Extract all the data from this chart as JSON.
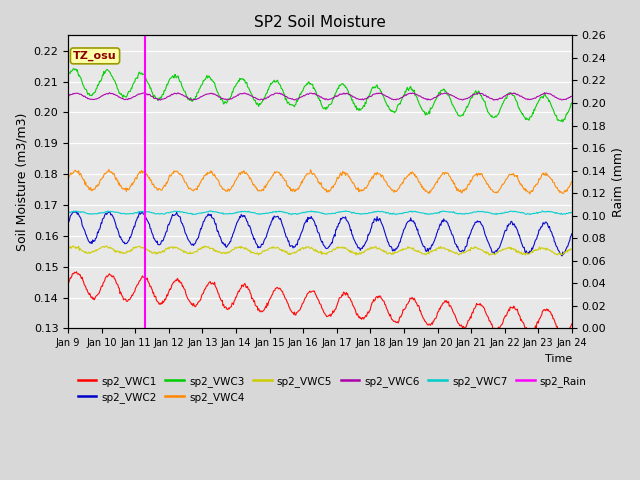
{
  "title": "SP2 Soil Moisture",
  "xlabel": "Time",
  "ylabel_left": "Soil Moisture (m3/m3)",
  "ylabel_right": "Raim (mm)",
  "annotation": "TZ_osu",
  "ylim_left": [
    0.13,
    0.225
  ],
  "ylim_right": [
    0.0,
    0.26
  ],
  "yticks_left": [
    0.13,
    0.14,
    0.15,
    0.16,
    0.17,
    0.18,
    0.19,
    0.2,
    0.21,
    0.22
  ],
  "yticks_right": [
    0.0,
    0.02,
    0.04,
    0.06,
    0.08,
    0.1,
    0.12,
    0.14,
    0.16,
    0.18,
    0.2,
    0.22,
    0.24,
    0.26
  ],
  "rain_line_day": 2.3,
  "n_points": 720,
  "series": [
    {
      "name": "sp2_VWC1",
      "color": "#ff0000",
      "base": 0.1445,
      "trend": -0.013,
      "amp": 0.004,
      "period": 1.0,
      "phase": 0.0,
      "noise": 0.0003
    },
    {
      "name": "sp2_VWC2",
      "color": "#0000cc",
      "base": 0.163,
      "trend": -0.004,
      "amp": 0.005,
      "period": 1.0,
      "phase": 0.3,
      "noise": 0.0003
    },
    {
      "name": "sp2_VWC3",
      "color": "#00cc00",
      "base": 0.21,
      "trend": -0.009,
      "amp": 0.004,
      "period": 1.0,
      "phase": 0.5,
      "noise": 0.0003
    },
    {
      "name": "sp2_VWC4",
      "color": "#ff8800",
      "base": 0.178,
      "trend": -0.001,
      "amp": 0.003,
      "period": 1.0,
      "phase": 0.2,
      "noise": 0.0003
    },
    {
      "name": "sp2_VWC5",
      "color": "#cccc00",
      "base": 0.1555,
      "trend": -0.0005,
      "amp": 0.001,
      "period": 1.0,
      "phase": 0.8,
      "noise": 0.0002
    },
    {
      "name": "sp2_VWC6",
      "color": "#aa00aa",
      "base": 0.2052,
      "trend": 0.0,
      "amp": 0.001,
      "period": 1.0,
      "phase": 0.1,
      "noise": 0.0001
    },
    {
      "name": "sp2_VWC7",
      "color": "#00cccc",
      "base": 0.1675,
      "trend": 0.0,
      "amp": 0.0004,
      "period": 1.0,
      "phase": 0.0,
      "noise": 0.0001
    }
  ],
  "rain_color": "#ff00ff",
  "bg_color": "#d8d8d8",
  "plot_bg_color": "#e8e8e8",
  "legend_items": [
    {
      "label": "sp2_VWC1",
      "color": "#ff0000"
    },
    {
      "label": "sp2_VWC2",
      "color": "#0000cc"
    },
    {
      "label": "sp2_VWC3",
      "color": "#00cc00"
    },
    {
      "label": "sp2_VWC4",
      "color": "#ff8800"
    },
    {
      "label": "sp2_VWC5",
      "color": "#cccc00"
    },
    {
      "label": "sp2_VWC6",
      "color": "#aa00aa"
    },
    {
      "label": "sp2_VWC7",
      "color": "#00cccc"
    },
    {
      "label": "sp2_Rain",
      "color": "#ff00ff"
    }
  ]
}
